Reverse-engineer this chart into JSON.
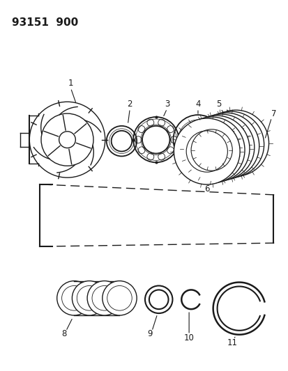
{
  "title": "93151  900",
  "bg_color": "#ffffff",
  "line_color": "#1a1a1a",
  "title_fontsize": 11,
  "label_fontsize": 8.5,
  "figsize": [
    4.14,
    5.33
  ],
  "dpi": 100
}
